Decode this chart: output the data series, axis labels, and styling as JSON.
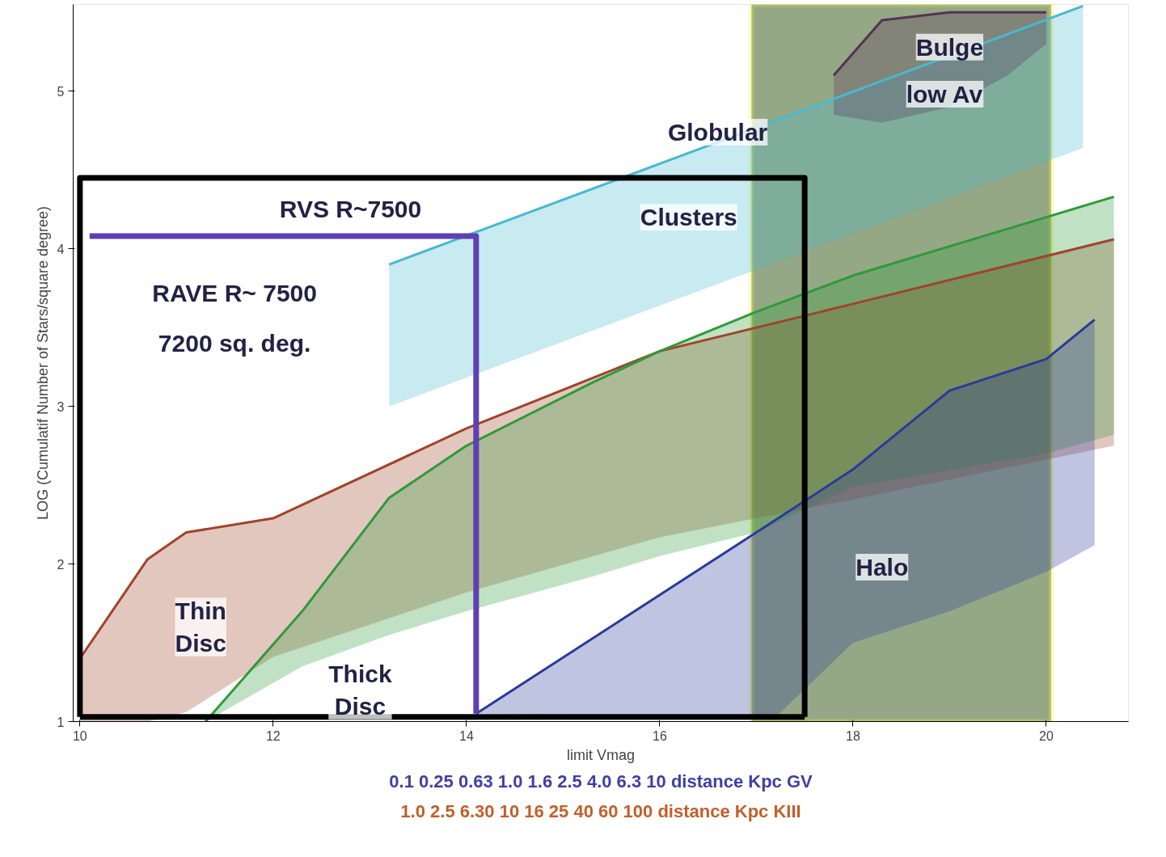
{
  "chart_data": {
    "type": "line",
    "xlabel": "limit Vmag",
    "ylabel": "LOG (Cumulatif Number of Stars/square degree)",
    "xlim": [
      9.93,
      20.85
    ],
    "ylim": [
      1,
      5.55
    ],
    "xticks": [
      10,
      12,
      14,
      16,
      18,
      20
    ],
    "yticks": [
      1,
      2,
      3,
      4,
      5
    ],
    "series": [
      {
        "color": "#a0442a",
        "x": [
          10,
          10.7,
          11.1,
          12,
          14,
          16,
          18,
          20.7
        ],
        "values": [
          1.4,
          2.03,
          2.2,
          2.29,
          2.86,
          3.35,
          3.65,
          4.06
        ],
        "upper": [
          1.4,
          2.03,
          2.2,
          2.29,
          2.86,
          3.35,
          3.65,
          4.06
        ],
        "lower": [
          1.0,
          1.0,
          1.06,
          1.41,
          1.82,
          2.17,
          2.41,
          2.75
        ]
      },
      {
        "color": "#2e9a3a",
        "x": [
          11.3,
          12.3,
          13.2,
          14,
          15.3,
          16,
          17,
          18,
          20,
          20.7
        ],
        "values": [
          1.0,
          1.7,
          2.42,
          2.75,
          3.15,
          3.35,
          3.6,
          3.83,
          4.2,
          4.33
        ],
        "upper": [
          1.0,
          1.7,
          2.42,
          2.75,
          3.15,
          3.35,
          3.6,
          3.83,
          4.2,
          4.33
        ],
        "lower": [
          1.0,
          1.35,
          1.55,
          1.7,
          1.92,
          2.05,
          2.2,
          2.49,
          2.7,
          2.82
        ]
      },
      {
        "color": "#2a3a9a",
        "x": [
          14.1,
          17,
          17.2,
          18,
          19,
          20,
          20.5
        ],
        "values": [
          1.05,
          2.2,
          2.28,
          2.6,
          3.1,
          3.3,
          3.55
        ],
        "upper": [
          1.05,
          2.2,
          2.28,
          2.6,
          3.1,
          3.3,
          3.55
        ],
        "lower": [
          1.05,
          1.03,
          1.03,
          1.5,
          1.7,
          1.95,
          2.12
        ]
      },
      {
        "color": "#4ab8d0",
        "x": [
          13.2,
          20.38
        ],
        "values": [
          3.9,
          5.54
        ],
        "upper": [
          3.9,
          5.54
        ],
        "lower": [
          3.0,
          4.64
        ]
      },
      {
        "color": "#553355",
        "x": [
          17.8,
          18.3,
          19,
          19.6,
          20.0
        ],
        "values": [
          5.1,
          5.45,
          5.5,
          5.5,
          5.5
        ],
        "upper": [
          5.1,
          5.45,
          5.5,
          5.5,
          5.5
        ],
        "lower": [
          4.85,
          4.8,
          4.9,
          5.1,
          5.3
        ]
      },
      {
        "type": "line",
        "color": "#000000",
        "x": [
          10,
          10,
          17.5,
          17.5
        ],
        "values": [
          1.03,
          4.45,
          4.45,
          1.03
        ]
      },
      {
        "type": "line",
        "color": "#000000",
        "x": [
          10,
          17.5
        ],
        "values": [
          1.03,
          1.03
        ]
      },
      {
        "type": "line",
        "color": "#6040b0",
        "x": [
          10.1,
          14.1,
          14.1
        ],
        "values": [
          4.08,
          4.08,
          1.05
        ]
      }
    ],
    "bands": [
      {
        "axis": "x",
        "from": 16.95,
        "to": 20.05,
        "color": "#4f6e35"
      }
    ],
    "annotations": [
      "RVS R~7500",
      "RAVE R~ 7500",
      "7200 sq. deg.",
      "Globular",
      "Clusters",
      "Bulge",
      "low Av",
      "Halo",
      "Thin\nDisc",
      "Thick\nDisc",
      "0.1 0.25 0.63 1.0 1.6 2.5 4.0 6.3 10 distance Kpc GV",
      "1.0 2.5 6.30 10 16 25 40 60 100 distance Kpc KIII"
    ]
  }
}
